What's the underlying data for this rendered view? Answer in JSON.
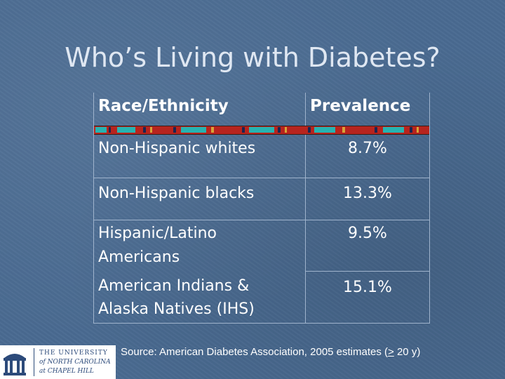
{
  "slide": {
    "title": "Who’s Living with Diabetes?"
  },
  "table": {
    "headers": {
      "left": "Race/Ethnicity",
      "right": "Prevalence"
    },
    "rows": [
      {
        "group": "Non-Hispanic whites",
        "prevalence": "8.7%"
      },
      {
        "group": "Non-Hispanic blacks",
        "prevalence": "13.3%"
      },
      {
        "group_line1": "Hispanic/Latino",
        "group_line2": "Americans",
        "prevalence": "9.5%"
      },
      {
        "group_line1": "American Indians &",
        "group_line2": "Alaska Natives (IHS)",
        "prevalence": "15.1%"
      }
    ]
  },
  "source": {
    "prefix": "Source:  American Diabetes Association, 2005 estimates (",
    "symbol": ">",
    "suffix": " 20 y)"
  },
  "logo": {
    "line1": "THE UNIVERSITY",
    "line2": "of NORTH CAROLINA",
    "line3": "at CHAPEL HILL"
  },
  "colors": {
    "background": "#4a6b91",
    "band_red": "#b7241e",
    "band_teal": "#27b3b0",
    "band_navy": "#1c2550",
    "band_gold": "#d7a437",
    "logo_blue": "#2c4a7a"
  }
}
